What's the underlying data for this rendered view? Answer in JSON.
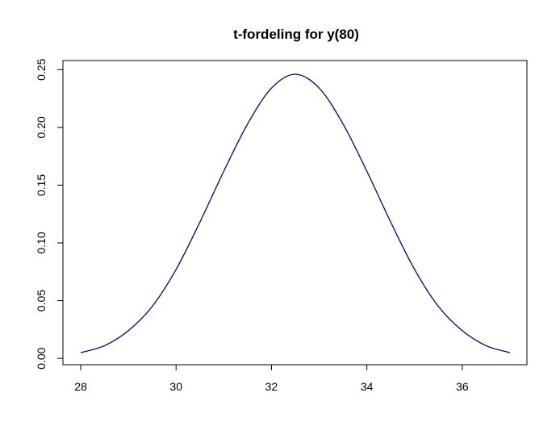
{
  "chart_data": {
    "type": "line",
    "title": "t-fordeling for y(80)",
    "xlabel": "",
    "ylabel": "",
    "xlim": [
      28,
      37
    ],
    "ylim": [
      0.005,
      0.246
    ],
    "x_ticks": [
      28,
      30,
      32,
      34,
      36
    ],
    "x_tick_labels": [
      "28",
      "30",
      "32",
      "34",
      "36"
    ],
    "y_ticks": [
      0.0,
      0.05,
      0.1,
      0.15,
      0.2,
      0.25
    ],
    "y_tick_labels": [
      "0.00",
      "0.05",
      "0.10",
      "0.15",
      "0.20",
      "0.25"
    ],
    "grid": false,
    "legend": "none",
    "series": [
      {
        "color": "#00008b",
        "x": [
          28.0,
          28.5,
          29.0,
          29.5,
          30.0,
          30.5,
          31.0,
          31.5,
          32.0,
          32.5,
          33.0,
          33.5,
          34.0,
          34.5,
          35.0,
          35.5,
          36.0,
          36.5,
          37.0
        ],
        "y": [
          0.005,
          0.011,
          0.024,
          0.045,
          0.077,
          0.118,
          0.162,
          0.203,
          0.234,
          0.246,
          0.234,
          0.203,
          0.162,
          0.118,
          0.077,
          0.045,
          0.024,
          0.011,
          0.005
        ]
      }
    ]
  }
}
